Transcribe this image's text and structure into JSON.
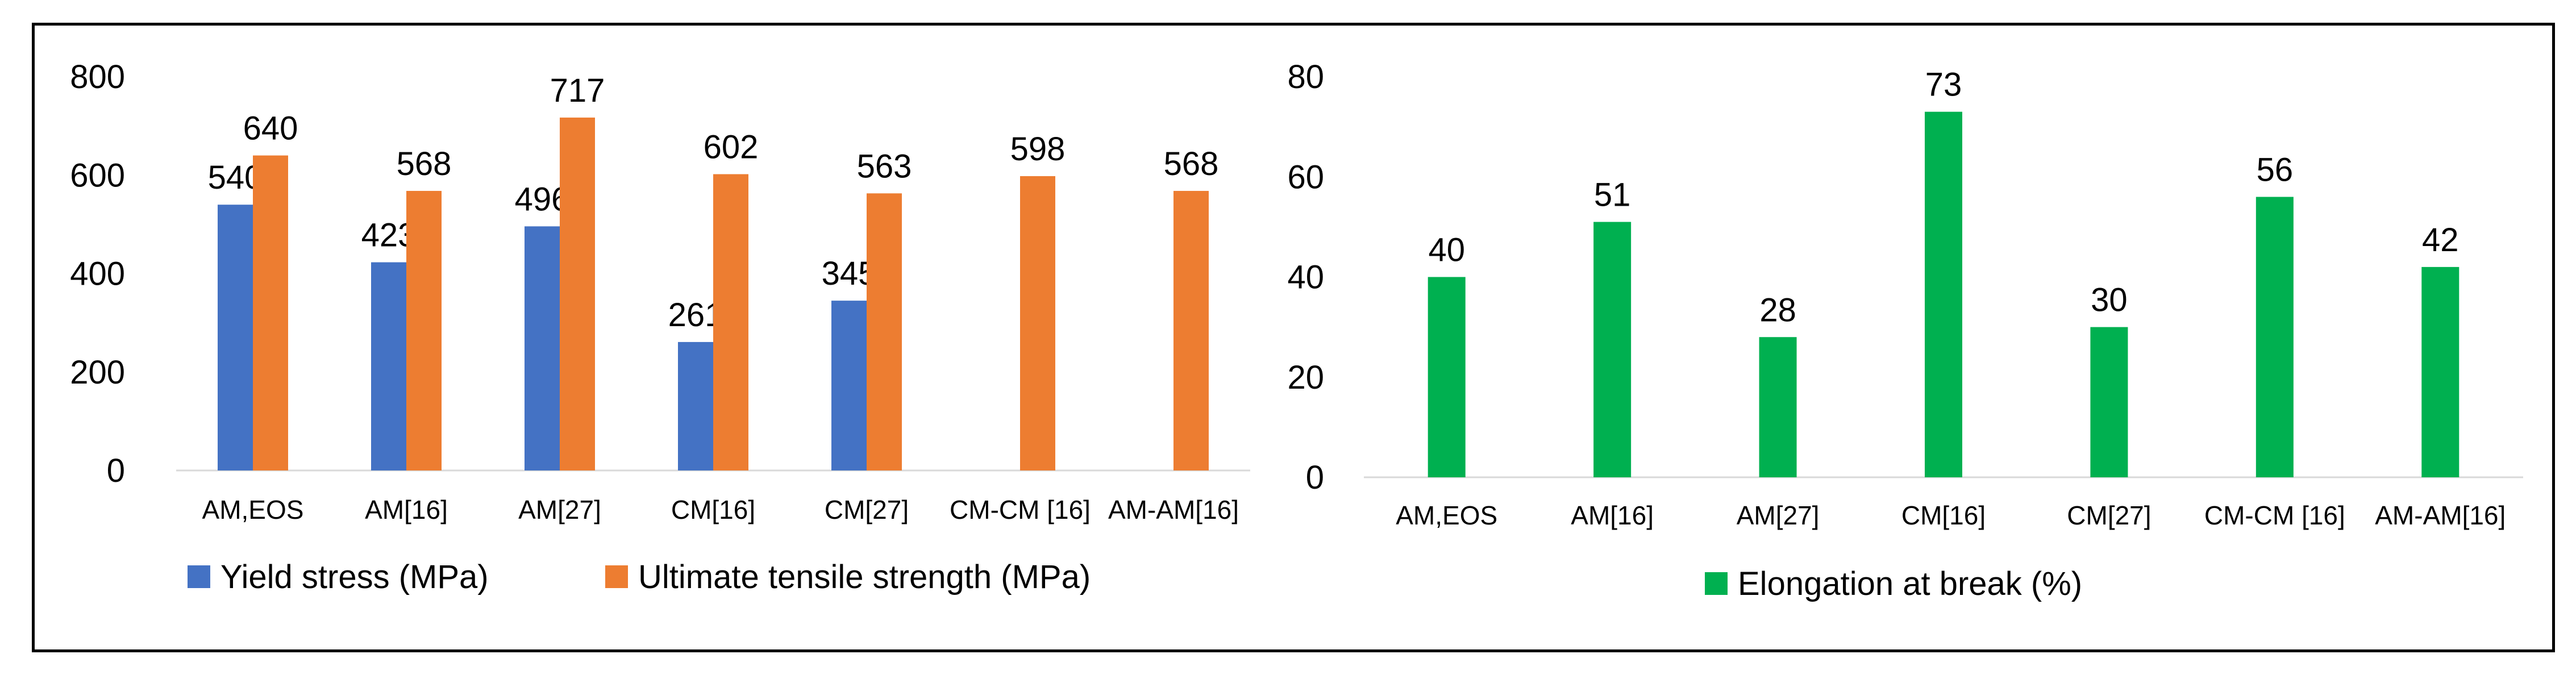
{
  "chart_data": [
    {
      "type": "bar",
      "categories": [
        "AM,EOS",
        "AM[16]",
        "AM[27]",
        "CM[16]",
        "CM[27]",
        "CM-CM [16]",
        "AM-AM[16]"
      ],
      "series": [
        {
          "name": "Yield stress (MPa)",
          "color": "#4472c4",
          "values": [
            540,
            423,
            496,
            261,
            345,
            null,
            null
          ]
        },
        {
          "name": "Ultimate tensile strength (MPa)",
          "color": "#ed7d31",
          "values": [
            640,
            568,
            717,
            602,
            563,
            598,
            568
          ]
        }
      ],
      "yticks": [
        0,
        200,
        400,
        600,
        800
      ],
      "ylim": [
        0,
        800
      ],
      "grid": false,
      "legend": "bottom"
    },
    {
      "type": "bar",
      "categories": [
        "AM,EOS",
        "AM[16]",
        "AM[27]",
        "CM[16]",
        "CM[27]",
        "CM-CM [16]",
        "AM-AM[16]"
      ],
      "series": [
        {
          "name": "Elongation at break (%)",
          "color": "#00b050",
          "values": [
            40,
            51,
            28,
            73,
            30,
            56,
            42
          ]
        }
      ],
      "yticks": [
        0,
        20,
        40,
        60,
        80
      ],
      "ylim": [
        0,
        80
      ],
      "grid": false,
      "legend": "bottom"
    }
  ]
}
